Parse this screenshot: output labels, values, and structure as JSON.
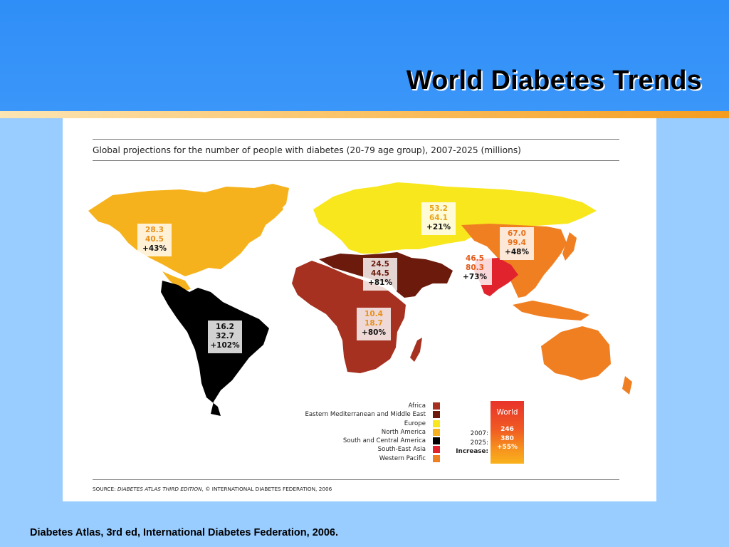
{
  "slide": {
    "title": "World Diabetes Trends",
    "footer": "Diabetes Atlas, 3rd ed,  International Diabetes Federation, 2006."
  },
  "figure": {
    "heading": "Global projections for the number of people with diabetes (20-79 age group), 2007-2025 (millions)",
    "source_prefix": "SOURCE: ",
    "source_title": "DIABETES ATLAS THIRD EDITION",
    "source_suffix": ", © INTERNATIONAL DIABETES FEDERATION, 2006"
  },
  "regions": [
    {
      "name": "Africa",
      "y2007": "10.4",
      "y2025": "18.7",
      "increase": "+80%",
      "color": "#a63120",
      "text_color": "#e8901a"
    },
    {
      "name": "Eastern Mediterranean  and Middle East",
      "y2007": "24.5",
      "y2025": "44.5",
      "increase": "+81%",
      "color": "#6b1a0c",
      "text_color": "#6b1a0c"
    },
    {
      "name": "Europe",
      "y2007": "53.2",
      "y2025": "64.1",
      "increase": "+21%",
      "color": "#f8e71c",
      "text_color": "#e8a41a"
    },
    {
      "name": "North America",
      "y2007": "28.3",
      "y2025": "40.5",
      "increase": "+43%",
      "color": "#f6b21c",
      "text_color": "#e8901a"
    },
    {
      "name": "South and Central America",
      "y2007": "16.2",
      "y2025": "32.7",
      "increase": "+102%",
      "color": "#000000",
      "text_color": "#111111"
    },
    {
      "name": "South-East Asia",
      "y2007": "46.5",
      "y2025": "80.3",
      "increase": "+73%",
      "color": "#e0232d",
      "text_color": "#e35a1a"
    },
    {
      "name": "Western Pacific",
      "y2007": "67.0",
      "y2025": "99.4",
      "increase": "+48%",
      "color": "#f07f22",
      "text_color": "#e8701a"
    }
  ],
  "world": {
    "label": "World",
    "label_2007": "2007:",
    "label_2025": "2025:",
    "label_increase": "Increase:",
    "y2007": "246",
    "y2025": "380",
    "increase": "+55%"
  }
}
